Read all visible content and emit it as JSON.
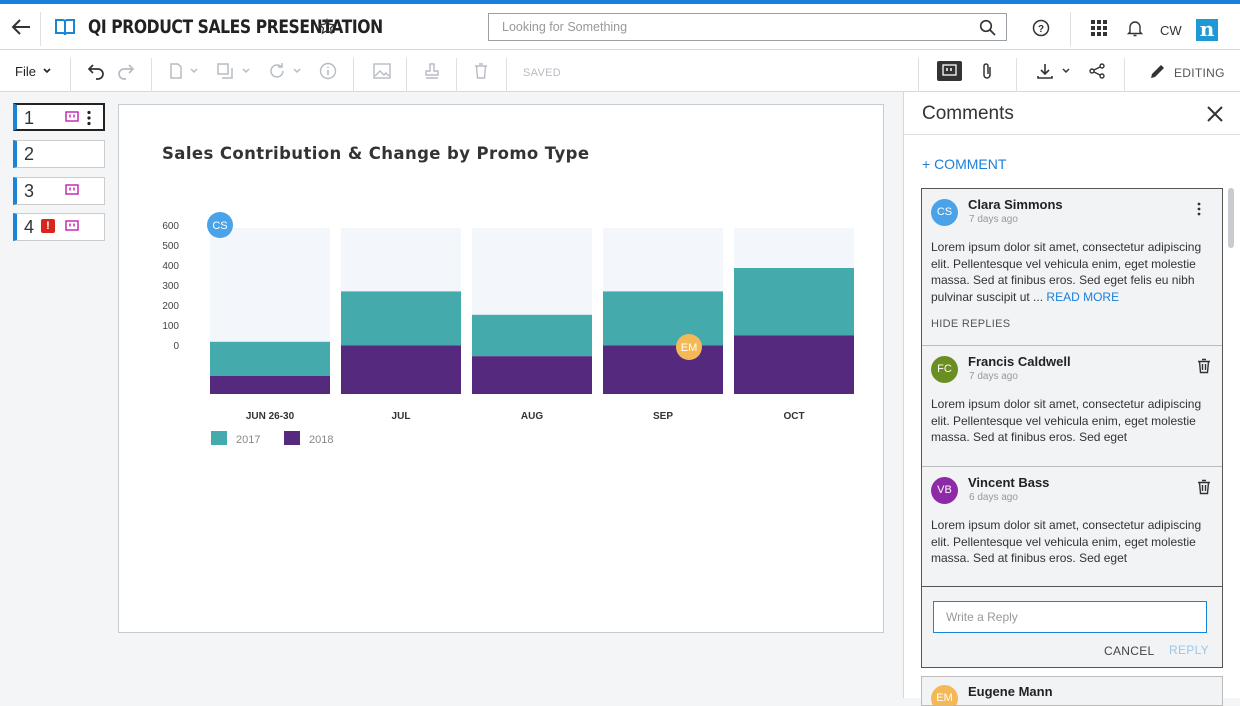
{
  "header": {
    "title": "QI PRODUCT SALES PRESENTATION",
    "search_placeholder": "Looking for Something",
    "user_initials": "CW",
    "logo_letter": "n",
    "accent_color": "#1a7fd9"
  },
  "toolbar": {
    "file_label": "File",
    "saved_label": "SAVED",
    "editing_label": "EDITING"
  },
  "slides": [
    {
      "number": "1",
      "has_comments": true,
      "has_error": false
    },
    {
      "number": "2",
      "has_comments": false,
      "has_error": false
    },
    {
      "number": "3",
      "has_comments": true,
      "has_error": false
    },
    {
      "number": "4",
      "has_comments": true,
      "has_error": true
    }
  ],
  "chart_data": {
    "type": "bar",
    "stacked": true,
    "title": "Sales Contribution & Change by Promo Type",
    "categories": [
      "JUN 26-30",
      "JUL",
      "AUG",
      "SEP",
      "OCT"
    ],
    "series": [
      {
        "name": "2018",
        "color": "#552a7e",
        "values": [
          100,
          270,
          210,
          270,
          325
        ]
      },
      {
        "name": "2017",
        "color": "#45aaac",
        "values": [
          190,
          300,
          230,
          300,
          375
        ]
      }
    ],
    "y_ticks": [
      "600",
      "500",
      "400",
      "300",
      "200",
      "100",
      "0"
    ],
    "legend": [
      "2017",
      "2018"
    ],
    "legend_position": "bottom-left",
    "grid": false,
    "markers": [
      {
        "initials": "CS",
        "color": "#4aa3e8"
      },
      {
        "initials": "EM",
        "color": "#f5b857"
      }
    ]
  },
  "comments_panel": {
    "title": "Comments",
    "add_label": "+ COMMENT",
    "comments": [
      {
        "initials": "CS",
        "avatar_color": "#4aa3e8",
        "name": "Clara Simmons",
        "time": "7 days ago",
        "text": "Lorem ipsum dolor sit amet, consectetur adipiscing elit. Pellentesque vel vehicula enim, eget molestie massa. Sed at finibus eros. Sed eget felis eu nibh pulvinar suscipit ut ...",
        "read_more": "READ MORE",
        "hide_replies": "HIDE REPLIES"
      },
      {
        "initials": "FC",
        "avatar_color": "#6b8e23",
        "name": "Francis Caldwell",
        "time": "7 days ago",
        "text": "Lorem ipsum dolor sit amet, consectetur adipiscing elit. Pellentesque vel vehicula enim, eget molestie massa. Sed at finibus eros. Sed eget"
      },
      {
        "initials": "VB",
        "avatar_color": "#8e2aa8",
        "name": "Vincent Bass",
        "time": "6 days ago",
        "text": "Lorem ipsum dolor sit amet, consectetur adipiscing elit. Pellentesque vel vehicula enim, eget molestie massa. Sed at finibus eros. Sed eget"
      }
    ],
    "reply_placeholder": "Write a Reply",
    "cancel_label": "CANCEL",
    "reply_label": "REPLY",
    "next_comment": {
      "initials": "EM",
      "avatar_color": "#f5b857",
      "name": "Eugene Mann"
    }
  }
}
